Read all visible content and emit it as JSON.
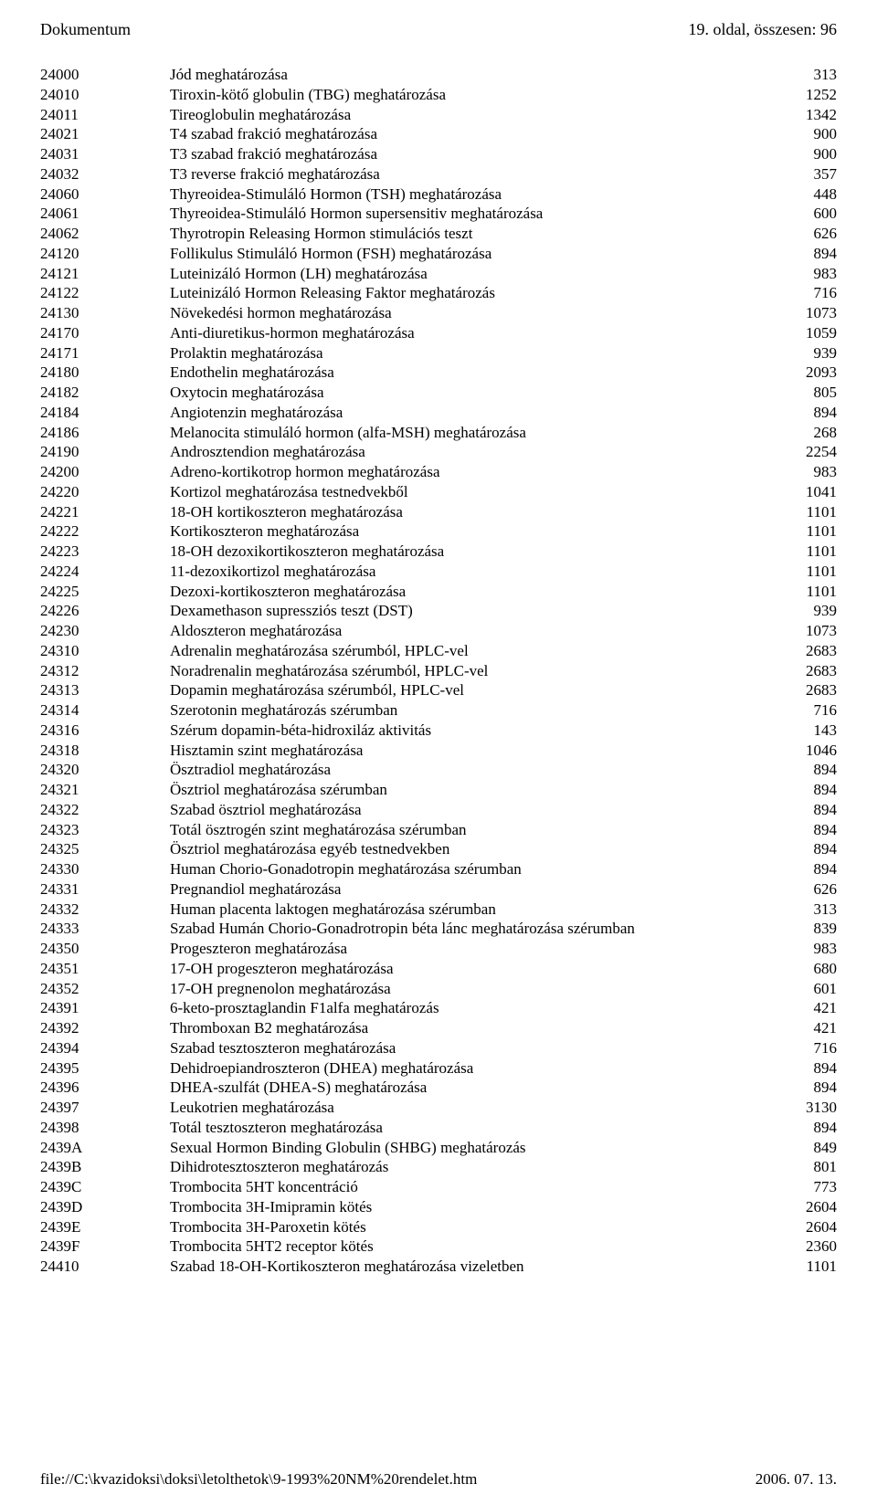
{
  "header": {
    "left": "Dokumentum",
    "right": "19. oldal, összesen: 96"
  },
  "footer": {
    "left": "file://C:\\kvazidoksi\\doksi\\letolthetok\\9-1993%20NM%20rendelet.htm",
    "right": "2006. 07. 13."
  },
  "rows": [
    {
      "code": "24000",
      "desc": "Jód meghatározása",
      "val": "313"
    },
    {
      "code": "24010",
      "desc": "Tiroxin-kötő globulin (TBG) meghatározása",
      "val": "1252"
    },
    {
      "code": "24011",
      "desc": "Tireoglobulin meghatározása",
      "val": "1342"
    },
    {
      "code": "24021",
      "desc": "T4 szabad frakció meghatározása",
      "val": "900"
    },
    {
      "code": "24031",
      "desc": "T3 szabad frakció meghatározása",
      "val": "900"
    },
    {
      "code": "24032",
      "desc": "T3 reverse frakció meghatározása",
      "val": "357"
    },
    {
      "code": "24060",
      "desc": "Thyreoidea-Stimuláló Hormon (TSH) meghatározása",
      "val": "448"
    },
    {
      "code": "24061",
      "desc": "Thyreoidea-Stimuláló Hormon supersensitiv meghatározása",
      "val": "600"
    },
    {
      "code": "24062",
      "desc": "Thyrotropin Releasing Hormon stimulációs teszt",
      "val": "626"
    },
    {
      "code": "24120",
      "desc": "Follikulus Stimuláló Hormon (FSH) meghatározása",
      "val": "894"
    },
    {
      "code": "24121",
      "desc": "Luteinizáló Hormon (LH) meghatározása",
      "val": "983"
    },
    {
      "code": "24122",
      "desc": "Luteinizáló Hormon Releasing Faktor meghatározás",
      "val": "716"
    },
    {
      "code": "24130",
      "desc": "Növekedési hormon meghatározása",
      "val": "1073"
    },
    {
      "code": "24170",
      "desc": "Anti-diuretikus-hormon meghatározása",
      "val": "1059"
    },
    {
      "code": "24171",
      "desc": "Prolaktin meghatározása",
      "val": "939"
    },
    {
      "code": "24180",
      "desc": "Endothelin meghatározása",
      "val": "2093"
    },
    {
      "code": "24182",
      "desc": "Oxytocin meghatározása",
      "val": "805"
    },
    {
      "code": "24184",
      "desc": "Angiotenzin meghatározása",
      "val": "894"
    },
    {
      "code": "24186",
      "desc": "Melanocita stimuláló hormon (alfa-MSH) meghatározása",
      "val": "268"
    },
    {
      "code": "24190",
      "desc": "Androsztendion meghatározása",
      "val": "2254"
    },
    {
      "code": "24200",
      "desc": "Adreno-kortikotrop hormon meghatározása",
      "val": "983"
    },
    {
      "code": "24220",
      "desc": "Kortizol meghatározása testnedvekből",
      "val": "1041"
    },
    {
      "code": "24221",
      "desc": "18-OH kortikoszteron meghatározása",
      "val": "1101"
    },
    {
      "code": "24222",
      "desc": "Kortikoszteron meghatározása",
      "val": "1101"
    },
    {
      "code": "24223",
      "desc": "18-OH dezoxikortikoszteron meghatározása",
      "val": "1101"
    },
    {
      "code": "24224",
      "desc": "11-dezoxikortizol meghatározása",
      "val": "1101"
    },
    {
      "code": "24225",
      "desc": "Dezoxi-kortikoszteron meghatározása",
      "val": "1101"
    },
    {
      "code": "24226",
      "desc": "Dexamethason supressziós teszt (DST)",
      "val": "939"
    },
    {
      "code": "24230",
      "desc": "Aldoszteron meghatározása",
      "val": "1073"
    },
    {
      "code": "24310",
      "desc": "Adrenalin meghatározása szérumból, HPLC-vel",
      "val": "2683"
    },
    {
      "code": "24312",
      "desc": "Noradrenalin meghatározása szérumból, HPLC-vel",
      "val": "2683"
    },
    {
      "code": "24313",
      "desc": "Dopamin meghatározása szérumból, HPLC-vel",
      "val": "2683"
    },
    {
      "code": "24314",
      "desc": "Szerotonin meghatározás szérumban",
      "val": "716"
    },
    {
      "code": "24316",
      "desc": "Szérum dopamin-béta-hidroxiláz aktivitás",
      "val": "143"
    },
    {
      "code": "24318",
      "desc": "Hisztamin szint meghatározása",
      "val": "1046"
    },
    {
      "code": "24320",
      "desc": "Ösztradiol meghatározása",
      "val": "894"
    },
    {
      "code": "24321",
      "desc": "Ösztriol meghatározása szérumban",
      "val": "894"
    },
    {
      "code": "24322",
      "desc": "Szabad ösztriol meghatározása",
      "val": "894"
    },
    {
      "code": "24323",
      "desc": "Totál ösztrogén szint meghatározása szérumban",
      "val": "894"
    },
    {
      "code": "24325",
      "desc": "Ösztriol meghatározása egyéb testnedvekben",
      "val": "894"
    },
    {
      "code": "24330",
      "desc": "Human Chorio-Gonadotropin meghatározása szérumban",
      "val": "894"
    },
    {
      "code": "24331",
      "desc": "Pregnandiol meghatározása",
      "val": "626"
    },
    {
      "code": "24332",
      "desc": "Human placenta laktogen meghatározása szérumban",
      "val": "313"
    },
    {
      "code": "24333",
      "desc": "Szabad Humán Chorio-Gonadrotropin béta lánc meghatározása szérumban",
      "val": "839"
    },
    {
      "code": "24350",
      "desc": "Progeszteron meghatározása",
      "val": "983"
    },
    {
      "code": "24351",
      "desc": "17-OH progeszteron meghatározása",
      "val": "680"
    },
    {
      "code": "24352",
      "desc": "17-OH pregnenolon meghatározása",
      "val": "601"
    },
    {
      "code": "24391",
      "desc": "6-keto-prosztaglandin F1alfa meghatározás",
      "val": "421"
    },
    {
      "code": "24392",
      "desc": "Thromboxan B2 meghatározása",
      "val": "421"
    },
    {
      "code": "24394",
      "desc": "Szabad tesztoszteron meghatározása",
      "val": "716"
    },
    {
      "code": "24395",
      "desc": "Dehidroepiandroszteron (DHEA) meghatározása",
      "val": "894"
    },
    {
      "code": "24396",
      "desc": "DHEA-szulfát (DHEA-S) meghatározása",
      "val": "894"
    },
    {
      "code": "24397",
      "desc": "Leukotrien meghatározása",
      "val": "3130"
    },
    {
      "code": "24398",
      "desc": "Totál tesztoszteron meghatározása",
      "val": "894"
    },
    {
      "code": "2439A",
      "desc": "Sexual Hormon Binding Globulin (SHBG) meghatározás",
      "val": "849"
    },
    {
      "code": "2439B",
      "desc": "Dihidrotesztoszteron meghatározás",
      "val": "801"
    },
    {
      "code": "2439C",
      "desc": "Trombocita 5HT koncentráció",
      "val": "773"
    },
    {
      "code": "2439D",
      "desc": "Trombocita 3H-Imipramin kötés",
      "val": "2604"
    },
    {
      "code": "2439E",
      "desc": "Trombocita 3H-Paroxetin kötés",
      "val": "2604"
    },
    {
      "code": "2439F",
      "desc": "Trombocita 5HT2 receptor kötés",
      "val": "2360"
    },
    {
      "code": "24410",
      "desc": "Szabad 18-OH-Kortikoszteron meghatározása vizeletben",
      "val": "1101"
    }
  ]
}
